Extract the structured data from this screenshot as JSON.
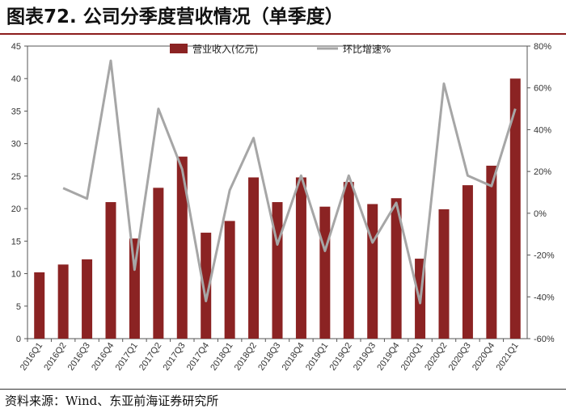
{
  "header": {
    "title": "图表72. 公司分季度营收情况（单季度）"
  },
  "footer": {
    "source": "资料来源：Wind、东亚前海证券研究所"
  },
  "colors": {
    "bar": "#8b2323",
    "line": "#a6a6a6",
    "rule": "#8c1d1d"
  },
  "chart_data": {
    "type": "bar",
    "categories": [
      "2016Q1",
      "2016Q2",
      "2016Q3",
      "2016Q4",
      "2017Q1",
      "2017Q2",
      "2017Q3",
      "2017Q4",
      "2018Q1",
      "2018Q2",
      "2018Q3",
      "2018Q4",
      "2019Q1",
      "2019Q2",
      "2019Q3",
      "2019Q4",
      "2020Q1",
      "2020Q2",
      "2020Q3",
      "2020Q4",
      "2021Q1"
    ],
    "series": [
      {
        "name": "营业收入(亿元)",
        "type": "bar",
        "axis": "left",
        "values": [
          10.2,
          11.4,
          12.2,
          21.0,
          15.4,
          23.2,
          28.0,
          16.3,
          18.1,
          24.8,
          21.0,
          24.8,
          20.3,
          24.1,
          20.7,
          21.6,
          12.3,
          19.9,
          23.6,
          26.6,
          40.0
        ]
      },
      {
        "name": "环比增速%",
        "type": "line",
        "axis": "right",
        "values": [
          null,
          12,
          7,
          73,
          -27,
          50,
          21,
          -42,
          11,
          36,
          -15,
          18,
          -18,
          18,
          -14,
          5,
          -43,
          62,
          18,
          13,
          50
        ]
      }
    ],
    "y_left": {
      "min": 0,
      "max": 45,
      "ticks": [
        "0",
        "5",
        "10",
        "15",
        "20",
        "25",
        "30",
        "35",
        "40",
        "45"
      ]
    },
    "y_right": {
      "min": -60,
      "max": 80,
      "ticks": [
        "-60%",
        "-40%",
        "-20%",
        "0%",
        "20%",
        "40%",
        "60%",
        "80%"
      ]
    },
    "legend_position": "top-center",
    "grid": false
  }
}
